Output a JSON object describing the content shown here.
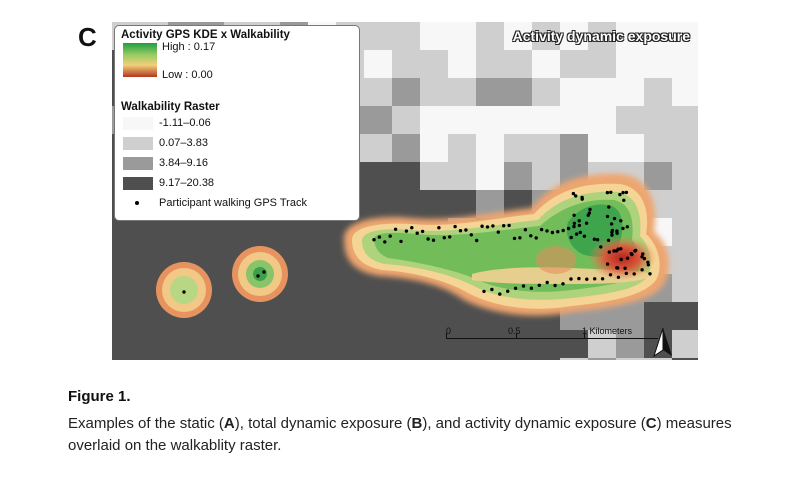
{
  "panel_letter": "C",
  "map": {
    "title": "Activity dynamic exposure",
    "legend": {
      "kde_title": "Activity GPS KDE x Walkability",
      "kde_high": "High : 0.17",
      "kde_low": "Low : 0.00",
      "walkability_title": "Walkability Raster",
      "walkability_classes": [
        {
          "label": "-1.11–0.06",
          "color": "#f7f7f7"
        },
        {
          "label": "0.07–3.83",
          "color": "#cfcfcf"
        },
        {
          "label": "3.84–9.16",
          "color": "#9a9a9a"
        },
        {
          "label": "9.17–20.38",
          "color": "#4f4f4f"
        }
      ],
      "gps_label": "Participant walking GPS Track"
    },
    "scale": {
      "labels": [
        "0",
        "0.5",
        "1 Kilometers"
      ]
    },
    "north_arrow": "north-arrow-icon"
  },
  "caption": {
    "title": "Figure 1.",
    "part1": "Examples of the static (",
    "A": "A",
    "part2": "), total dynamic exposure (",
    "B": "B",
    "part3": "), and activity dynamic exposure (",
    "C": "C",
    "part4": ") measures overlaid on the walkablity raster."
  }
}
